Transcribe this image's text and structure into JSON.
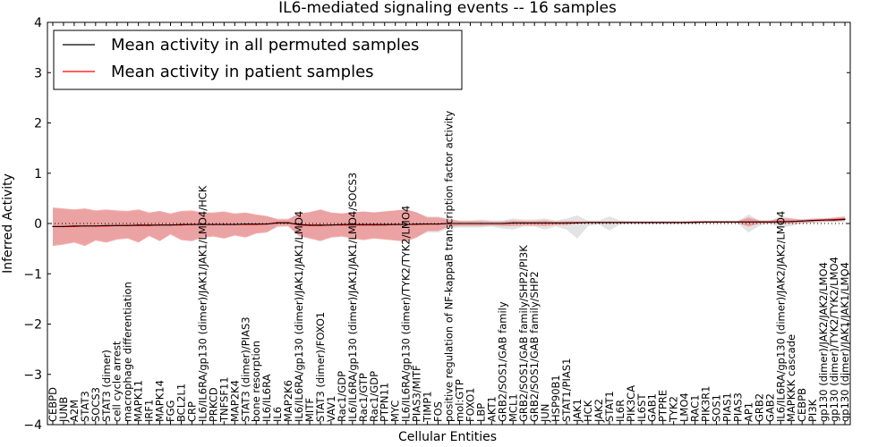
{
  "chart_data": {
    "type": "line",
    "title": "IL6-mediated signaling events -- 16 samples",
    "xlabel": "Cellular Entities",
    "ylabel": "Inferred Activity",
    "ylim": [
      -4,
      4
    ],
    "yticks": [
      "4",
      "3",
      "2",
      "1",
      "0",
      "−1",
      "−2",
      "−3",
      "−4"
    ],
    "legend": {
      "position": "top-left",
      "entries": [
        {
          "name": "Mean activity in all permuted samples",
          "color": "#000000"
        },
        {
          "name": "Mean activity in patient samples",
          "color": "#ff0000"
        }
      ]
    },
    "categories": [
      "CEBPD",
      "JUNB",
      "A2M",
      "STAT3",
      "SOCS3",
      "STAT3 (dimer)",
      "cell cycle arrest",
      "macrophage differentiation",
      "MAPK11",
      "IRF1",
      "MAPK14",
      "FGG",
      "BCL2L1",
      "CRP",
      "IL6/IL6RA/gp130 (dimer)/JAK1/JAK1/LMO4/HCK",
      "PRKCD",
      "TNFSF11",
      "MAP2K4",
      "STAT3 (dimer)/PIAS3",
      "bone resorption",
      "IL6/IL6RA",
      "IL6",
      "MAP2K6",
      "IL6/IL6RA/gp130 (dimer)/JAK1/JAK1/LMO4",
      "MITF",
      "STAT3 (dimer)/FOXO1",
      "VAV1",
      "Rac1/GDP",
      "IL6/IL6RA/gp130 (dimer)/JAK1/JAK1/LMO4/SOCS3",
      "Rac1/GTP",
      "Rac1/GDP",
      "PTPN11",
      "MYC",
      "IL6/IL6RA/gp130 (dimer)/TYK2/TYK2/LMO4",
      "PIAS3/MITF",
      "TIMP1",
      "FOS",
      "positive regulation of NF-kappaB transcription factor activity",
      "mol:GTP",
      "FOXO1",
      "LBP",
      "AKT1",
      "GRB2/SOS1/GAB family",
      "MCL1",
      "GRB2/SOS1/GAB family/SHP2/PI3K",
      "GRB2/SOS1/GAB family/SHP2",
      "JUN",
      "HSP90B1",
      "STAT1/PIAS1",
      "JAK1",
      "HCK",
      "JAK2",
      "STAT1",
      "IL6R",
      "PIK3CA",
      "IL6ST",
      "GAB1",
      "PTPRE",
      "TYK2",
      "LMO4",
      "RAC1",
      "PIK3R1",
      "SOS1",
      "PIAS1",
      "PIAS3",
      "AP1",
      "GRB2",
      "GAB2",
      "IL6/IL6RA/gp130 (dimer)/JAK2/JAK2/LMO4",
      "MAPKKK cascade",
      "CEBPB",
      "PI3K",
      "gp130 (dimer)/JAK2/JAK2/LMO4",
      "gp130 (dimer)/TYK2/TYK2/LMO4",
      "gp130 (dimer)/JAK1/JAK1/LMO4"
    ],
    "series": [
      {
        "name": "Mean activity in patient samples",
        "color": "#ff0000",
        "values": [
          -0.06,
          -0.06,
          -0.06,
          -0.05,
          -0.05,
          -0.05,
          -0.04,
          -0.04,
          -0.04,
          -0.04,
          -0.03,
          -0.03,
          -0.03,
          -0.02,
          -0.02,
          -0.02,
          -0.02,
          -0.02,
          -0.02,
          -0.02,
          -0.01,
          0.02,
          0.02,
          -0.03,
          -0.04,
          -0.04,
          -0.03,
          -0.03,
          -0.03,
          -0.03,
          -0.03,
          -0.03,
          -0.02,
          -0.02,
          -0.02,
          -0.01,
          -0.01,
          0.0,
          0.0,
          0.0,
          0.0,
          0.0,
          0.0,
          0.01,
          0.01,
          0.01,
          0.01,
          0.01,
          0.01,
          0.02,
          0.02,
          0.02,
          0.02,
          0.02,
          0.02,
          0.02,
          0.02,
          0.02,
          0.02,
          0.02,
          0.03,
          0.03,
          0.03,
          0.03,
          0.03,
          0.03,
          0.03,
          0.03,
          0.04,
          0.04,
          0.05,
          0.06,
          0.07,
          0.08,
          0.09
        ]
      },
      {
        "name": "Mean activity in all permuted samples",
        "color": "#000000",
        "values": [
          -0.06,
          -0.06,
          -0.05,
          -0.05,
          -0.05,
          -0.04,
          -0.04,
          -0.04,
          -0.03,
          -0.03,
          -0.03,
          -0.03,
          -0.02,
          -0.02,
          -0.02,
          -0.02,
          -0.02,
          -0.02,
          -0.01,
          -0.01,
          -0.01,
          0.01,
          0.01,
          -0.02,
          -0.03,
          -0.03,
          -0.03,
          -0.02,
          -0.02,
          -0.02,
          -0.02,
          -0.02,
          -0.02,
          -0.02,
          -0.01,
          -0.01,
          -0.01,
          0.0,
          0.0,
          0.0,
          0.0,
          0.0,
          0.0,
          0.01,
          0.01,
          0.01,
          0.01,
          0.01,
          0.01,
          0.01,
          0.02,
          0.02,
          0.02,
          0.02,
          0.02,
          0.02,
          0.02,
          0.02,
          0.02,
          0.02,
          0.02,
          0.03,
          0.03,
          0.03,
          0.03,
          0.03,
          0.03,
          0.03,
          0.03,
          0.04,
          0.05,
          0.06,
          0.07,
          0.07,
          0.08
        ]
      }
    ],
    "patient_band": {
      "upper": [
        0.32,
        0.3,
        0.28,
        0.3,
        0.26,
        0.28,
        0.26,
        0.25,
        0.28,
        0.22,
        0.25,
        0.2,
        0.25,
        0.26,
        0.22,
        0.22,
        0.24,
        0.2,
        0.22,
        0.18,
        0.15,
        0.08,
        0.08,
        0.2,
        0.23,
        0.28,
        0.22,
        0.2,
        0.22,
        0.24,
        0.22,
        0.24,
        0.26,
        0.28,
        0.22,
        0.12,
        0.12,
        0.08,
        0.05,
        0.05,
        0.05,
        0.04,
        0.04,
        0.06,
        0.05,
        0.05,
        0.06,
        0.04,
        0.05,
        0.04,
        0.04,
        0.04,
        0.04,
        0.04,
        0.04,
        0.04,
        0.04,
        0.04,
        0.04,
        0.04,
        0.05,
        0.05,
        0.05,
        0.05,
        0.05,
        0.12,
        0.06,
        0.06,
        0.1,
        0.1,
        0.08,
        0.1,
        0.1,
        0.12,
        0.14
      ],
      "lower": [
        -0.45,
        -0.42,
        -0.38,
        -0.45,
        -0.34,
        -0.38,
        -0.32,
        -0.3,
        -0.38,
        -0.25,
        -0.35,
        -0.22,
        -0.33,
        -0.35,
        -0.28,
        -0.26,
        -0.3,
        -0.24,
        -0.28,
        -0.2,
        -0.18,
        -0.05,
        -0.05,
        -0.25,
        -0.3,
        -0.35,
        -0.28,
        -0.26,
        -0.3,
        -0.33,
        -0.3,
        -0.32,
        -0.34,
        -0.36,
        -0.28,
        -0.15,
        -0.15,
        -0.06,
        -0.05,
        -0.05,
        -0.05,
        -0.04,
        -0.05,
        -0.05,
        -0.04,
        -0.04,
        -0.05,
        -0.03,
        -0.03,
        0.0,
        0.0,
        0.0,
        0.0,
        0.0,
        0.0,
        0.0,
        0.0,
        0.0,
        0.0,
        0.0,
        0.01,
        0.01,
        0.01,
        0.01,
        0.01,
        -0.06,
        0.0,
        0.0,
        0.0,
        0.0,
        0.01,
        0.02,
        0.03,
        0.04,
        0.05
      ]
    },
    "permuted_band": {
      "upper": [
        0.3,
        0.28,
        0.26,
        0.28,
        0.24,
        0.26,
        0.24,
        0.23,
        0.26,
        0.2,
        0.23,
        0.18,
        0.23,
        0.24,
        0.2,
        0.2,
        0.22,
        0.18,
        0.2,
        0.16,
        0.14,
        0.1,
        0.1,
        0.2,
        0.22,
        0.26,
        0.2,
        0.2,
        0.22,
        0.23,
        0.22,
        0.24,
        0.26,
        0.28,
        0.22,
        0.14,
        0.14,
        0.1,
        0.06,
        0.06,
        0.08,
        0.06,
        0.06,
        0.1,
        0.08,
        0.08,
        0.1,
        0.06,
        0.1,
        0.16,
        0.06,
        0.06,
        0.14,
        0.06,
        0.05,
        0.05,
        0.05,
        0.05,
        0.05,
        0.05,
        0.05,
        0.05,
        0.05,
        0.05,
        0.05,
        0.18,
        0.06,
        0.05,
        0.16,
        0.1,
        0.06,
        0.08,
        0.08,
        0.1,
        0.12
      ],
      "lower": [
        -0.42,
        -0.4,
        -0.36,
        -0.42,
        -0.32,
        -0.36,
        -0.3,
        -0.28,
        -0.36,
        -0.24,
        -0.33,
        -0.2,
        -0.31,
        -0.33,
        -0.26,
        -0.24,
        -0.28,
        -0.22,
        -0.26,
        -0.18,
        -0.16,
        -0.08,
        -0.06,
        -0.24,
        -0.28,
        -0.33,
        -0.26,
        -0.24,
        -0.28,
        -0.31,
        -0.28,
        -0.3,
        -0.32,
        -0.34,
        -0.26,
        -0.18,
        -0.18,
        -0.1,
        -0.08,
        -0.08,
        -0.08,
        -0.06,
        -0.1,
        -0.12,
        -0.06,
        -0.06,
        -0.12,
        -0.06,
        -0.12,
        -0.3,
        -0.05,
        -0.02,
        -0.14,
        -0.02,
        0.0,
        0.0,
        0.0,
        0.0,
        0.0,
        0.0,
        0.0,
        0.0,
        0.0,
        0.0,
        0.0,
        -0.18,
        -0.05,
        0.0,
        -0.08,
        -0.05,
        0.0,
        0.02,
        0.03,
        0.03,
        0.04
      ]
    }
  }
}
